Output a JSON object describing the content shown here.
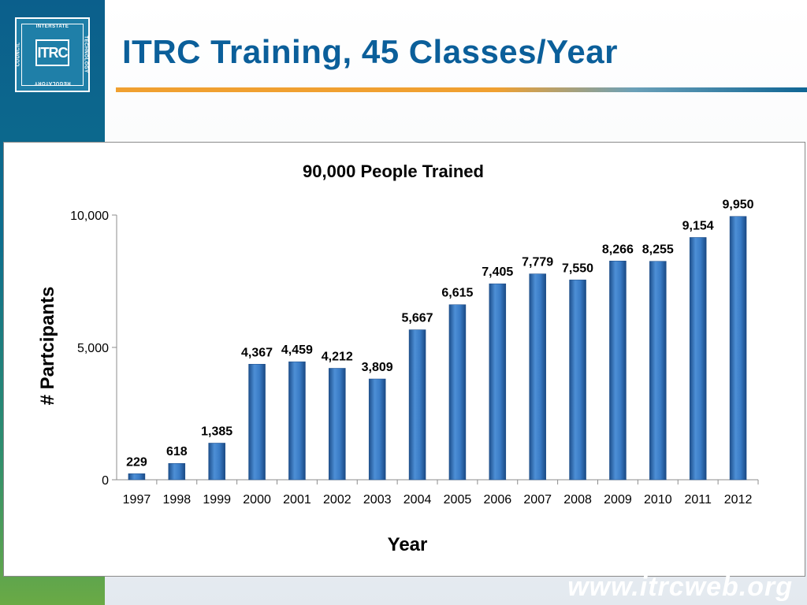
{
  "slide": {
    "title": "ITRC Training, 45 Classes/Year",
    "footer_url": "www.itrcweb.org"
  },
  "logo": {
    "mark": "ITRC",
    "ring_top": "INTERSTATE",
    "ring_right": "TECHNOLOGY",
    "ring_bottom": "REGULATORY",
    "ring_left": "COUNCIL"
  },
  "colors": {
    "bar": "#2f6fb5",
    "title": "#0b5f9a",
    "accent_rule": "#f0a030"
  },
  "chart_data": {
    "type": "bar",
    "title": "90,000 People Trained",
    "xlabel": "Year",
    "ylabel": "# Partcipants",
    "categories": [
      "1997",
      "1998",
      "1999",
      "2000",
      "2001",
      "2002",
      "2003",
      "2004",
      "2005",
      "2006",
      "2007",
      "2008",
      "2009",
      "2010",
      "2011",
      "2012"
    ],
    "values": [
      229,
      618,
      1385,
      4367,
      4459,
      4212,
      3809,
      5667,
      6615,
      7405,
      7779,
      7550,
      8266,
      8255,
      9154,
      9950
    ],
    "data_labels": [
      "229",
      "618",
      "1,385",
      "4,367",
      "4,459",
      "4,212",
      "3,809",
      "5,667",
      "6,615",
      "7,405",
      "7,779",
      "7,550",
      "8,266",
      "8,255",
      "9,154",
      "9,950"
    ],
    "ylim": [
      0,
      10000
    ],
    "yticks": [
      0,
      5000,
      10000
    ],
    "ytick_labels": [
      "0",
      "5,000",
      "10,000"
    ],
    "grid": false,
    "legend": "none"
  }
}
